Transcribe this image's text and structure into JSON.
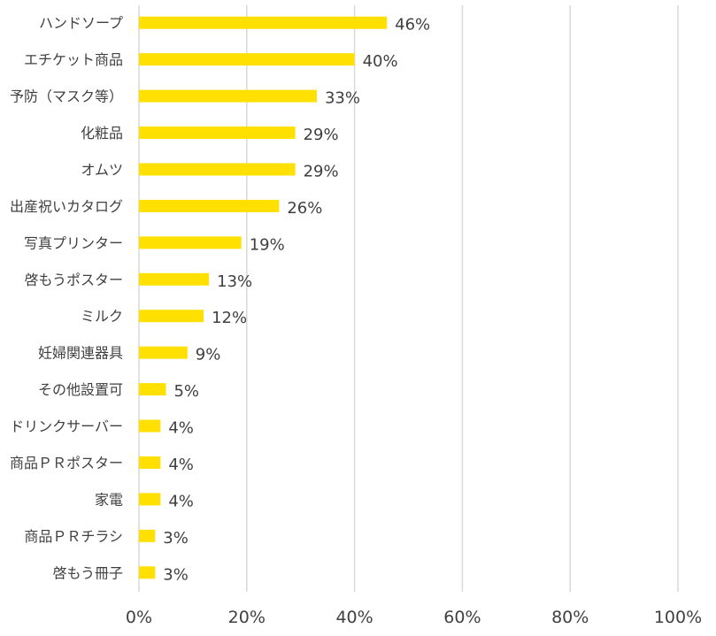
{
  "colors": {
    "bar": "#FFE000",
    "grid": "#D9D9D9",
    "text": "#404040"
  },
  "chart_data": {
    "type": "bar",
    "orientation": "horizontal",
    "title": "",
    "xlabel": "",
    "ylabel": "",
    "xlim": [
      0,
      100
    ],
    "grid": true,
    "legend": "none",
    "x_ticks": [
      "0%",
      "20%",
      "40%",
      "60%",
      "80%",
      "100%"
    ],
    "x_tick_values": [
      0,
      20,
      40,
      60,
      80,
      100
    ],
    "categories": [
      "ハンドソープ",
      "エチケット商品",
      "予防（マスク等）",
      "化粧品",
      "オムツ",
      "出産祝いカタログ",
      "写真プリンター",
      "啓もうポスター",
      "ミルク",
      "妊婦関連器具",
      "その他設置可",
      "ドリンクサーバー",
      "商品ＰＲポスター",
      "家電",
      "商品ＰＲチラシ",
      "啓もう冊子"
    ],
    "values": [
      46,
      40,
      33,
      29,
      29,
      26,
      19,
      13,
      12,
      9,
      5,
      4,
      4,
      4,
      3,
      3
    ],
    "data_labels": [
      "46%",
      "40%",
      "33%",
      "29%",
      "29%",
      "26%",
      "19%",
      "13%",
      "12%",
      "9%",
      "5%",
      "4%",
      "4%",
      "4%",
      "3%",
      "3%"
    ]
  }
}
